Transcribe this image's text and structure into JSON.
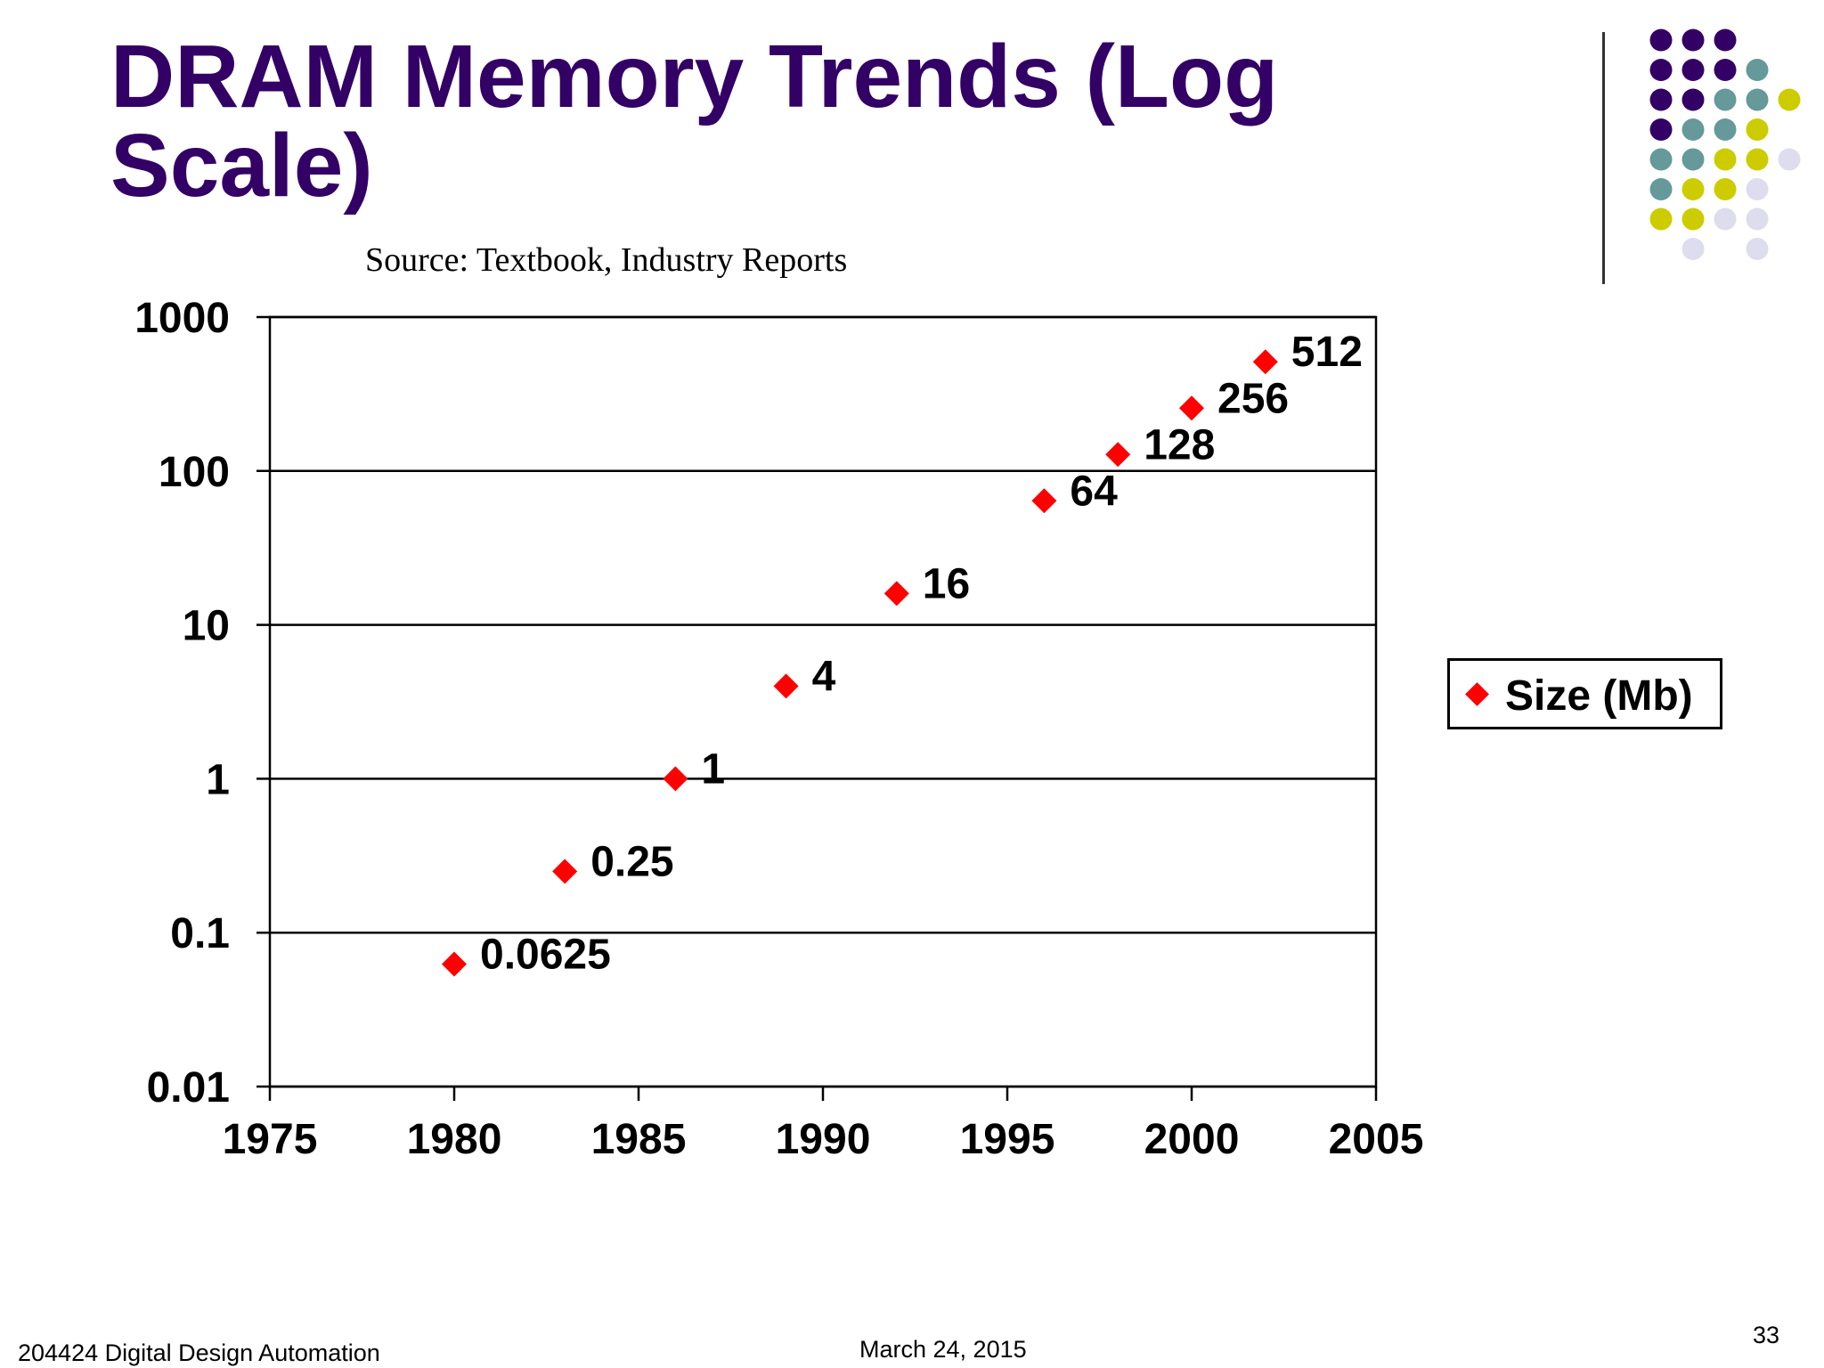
{
  "slide": {
    "title": "DRAM Memory Trends (Log Scale)",
    "source": "Source: Textbook, Industry Reports",
    "footer_left": "204424 Digital Design Automation",
    "footer_center": "March 24, 2015",
    "page_number": "33"
  },
  "colors": {
    "title": "#330066",
    "marker": "#ff0000",
    "dot_purple": "#330066",
    "dot_teal": "#669999",
    "dot_yellow": "#cccc00",
    "dot_lavender": "#ddddee"
  },
  "chart_data": {
    "type": "scatter",
    "title": "",
    "xlabel": "",
    "ylabel": "",
    "y_scale": "log",
    "xlim": [
      1975,
      2005
    ],
    "ylim": [
      0.01,
      1000
    ],
    "x_ticks": [
      "1975",
      "1980",
      "1985",
      "1990",
      "1995",
      "2000",
      "2005"
    ],
    "y_ticks": [
      "0.01",
      "0.1",
      "1",
      "10",
      "100",
      "1000"
    ],
    "grid": "horizontal",
    "legend_position": "right",
    "series": [
      {
        "name": "Size (Mb)",
        "x": [
          1980,
          1983,
          1986,
          1989,
          1992,
          1996,
          1998,
          2000,
          2002
        ],
        "y": [
          0.0625,
          0.25,
          1,
          4,
          16,
          64,
          128,
          256,
          512
        ],
        "labels": [
          "0.0625",
          "0.25",
          "1",
          "4",
          "16",
          "64",
          "128",
          "256",
          "512"
        ]
      }
    ]
  }
}
